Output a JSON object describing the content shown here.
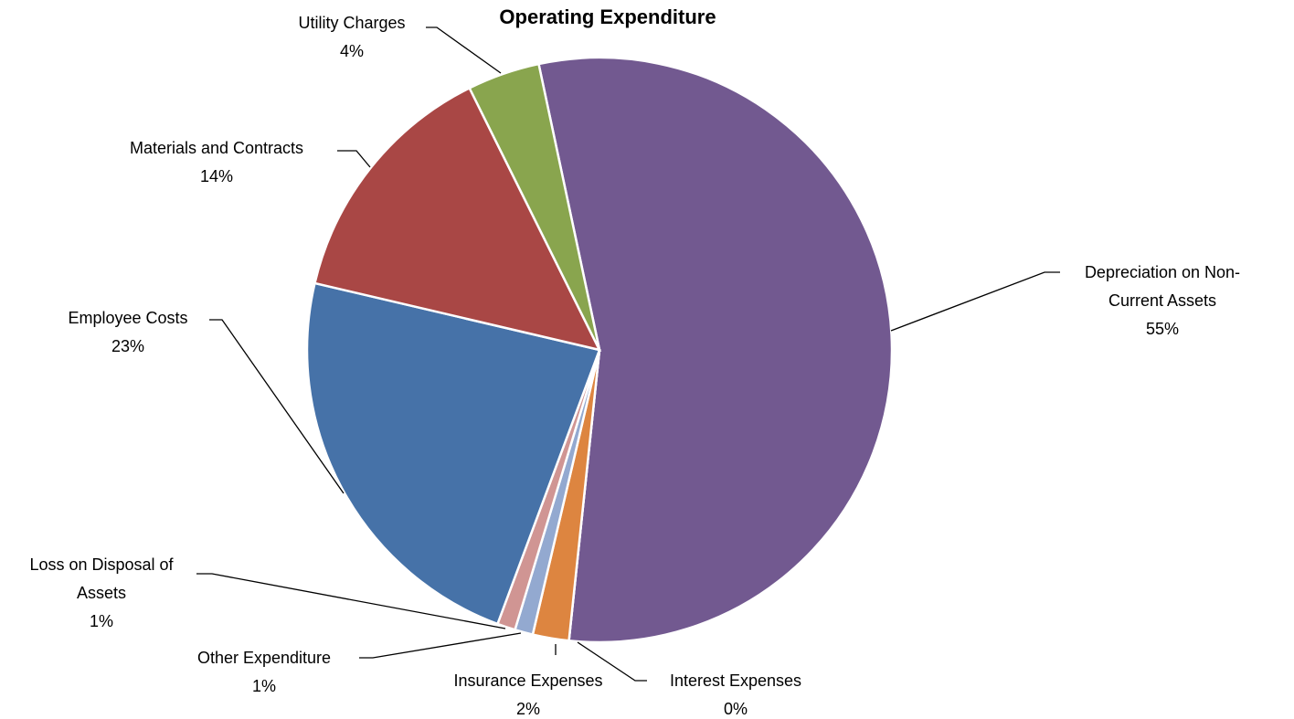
{
  "chart_data": {
    "type": "pie",
    "title": "Operating Expenditure",
    "categories": [
      "Depreciation on Non-Current Assets",
      "Interest Expenses",
      "Insurance Expenses",
      "Other Expenditure",
      "Loss on Disposal of Assets",
      "Employee Costs",
      "Materials and Contracts",
      "Utility Charges"
    ],
    "values": [
      55,
      0,
      2,
      1,
      1,
      23,
      14,
      4
    ],
    "value_labels": [
      "55%",
      "0%",
      "2%",
      "1%",
      "1%",
      "23%",
      "14%",
      "4%"
    ],
    "colors": [
      "#725990",
      "#4bacc6",
      "#dd8540",
      "#93a9d0",
      "#d09593",
      "#4672a8",
      "#a94745",
      "#89a54e"
    ]
  }
}
